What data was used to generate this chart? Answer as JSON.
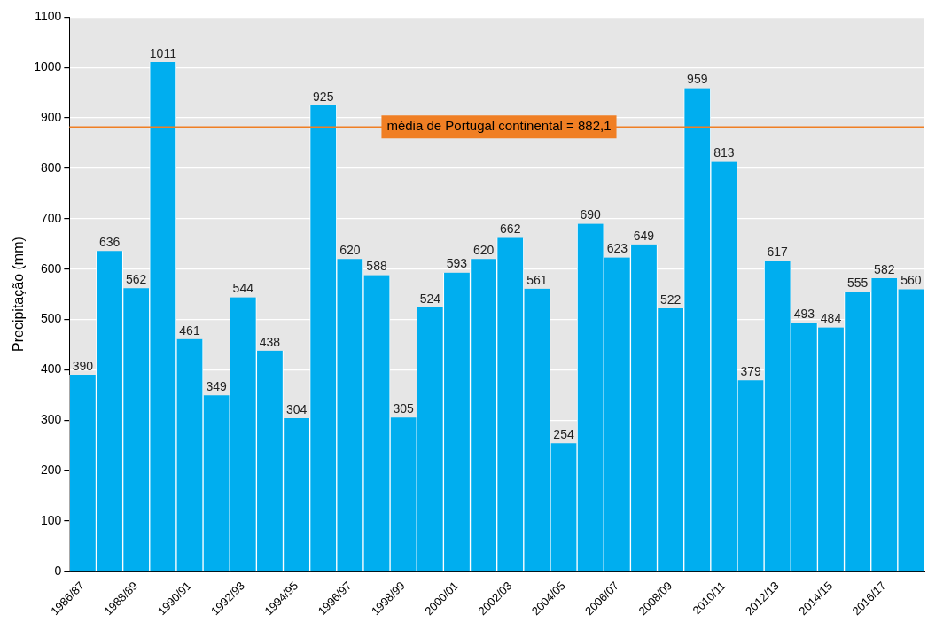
{
  "chart_data": {
    "type": "bar",
    "ylabel": "Precipitação (mm)",
    "categories": [
      "1986/87",
      null,
      "1988/89",
      null,
      "1990/91",
      null,
      "1992/93",
      null,
      "1994/95",
      null,
      "1996/97",
      null,
      "1998/99",
      null,
      "2000/01",
      null,
      "2002/03",
      null,
      "2004/05",
      null,
      "2006/07",
      null,
      "2008/09",
      null,
      "2010/11",
      null,
      "2012/13",
      null,
      "2014/15",
      null,
      "2016/17",
      null
    ],
    "values": [
      390,
      636,
      562,
      1011,
      461,
      349,
      544,
      438,
      304,
      925,
      620,
      588,
      305,
      524,
      593,
      620,
      662,
      561,
      254,
      690,
      623,
      649,
      522,
      959,
      813,
      379,
      617,
      493,
      484,
      555,
      582,
      560
    ],
    "color": "#00aeef",
    "ylim": [
      0,
      1100
    ],
    "yticks": [
      0,
      100,
      200,
      300,
      400,
      500,
      600,
      700,
      800,
      900,
      1000,
      1100
    ],
    "grid": "y",
    "data_labels": true,
    "legend": false,
    "ref_lines": [
      {
        "axis": "y",
        "value": 882.1,
        "label": "média de Portugal continental = 882,1",
        "color": "#f07f24"
      }
    ]
  }
}
